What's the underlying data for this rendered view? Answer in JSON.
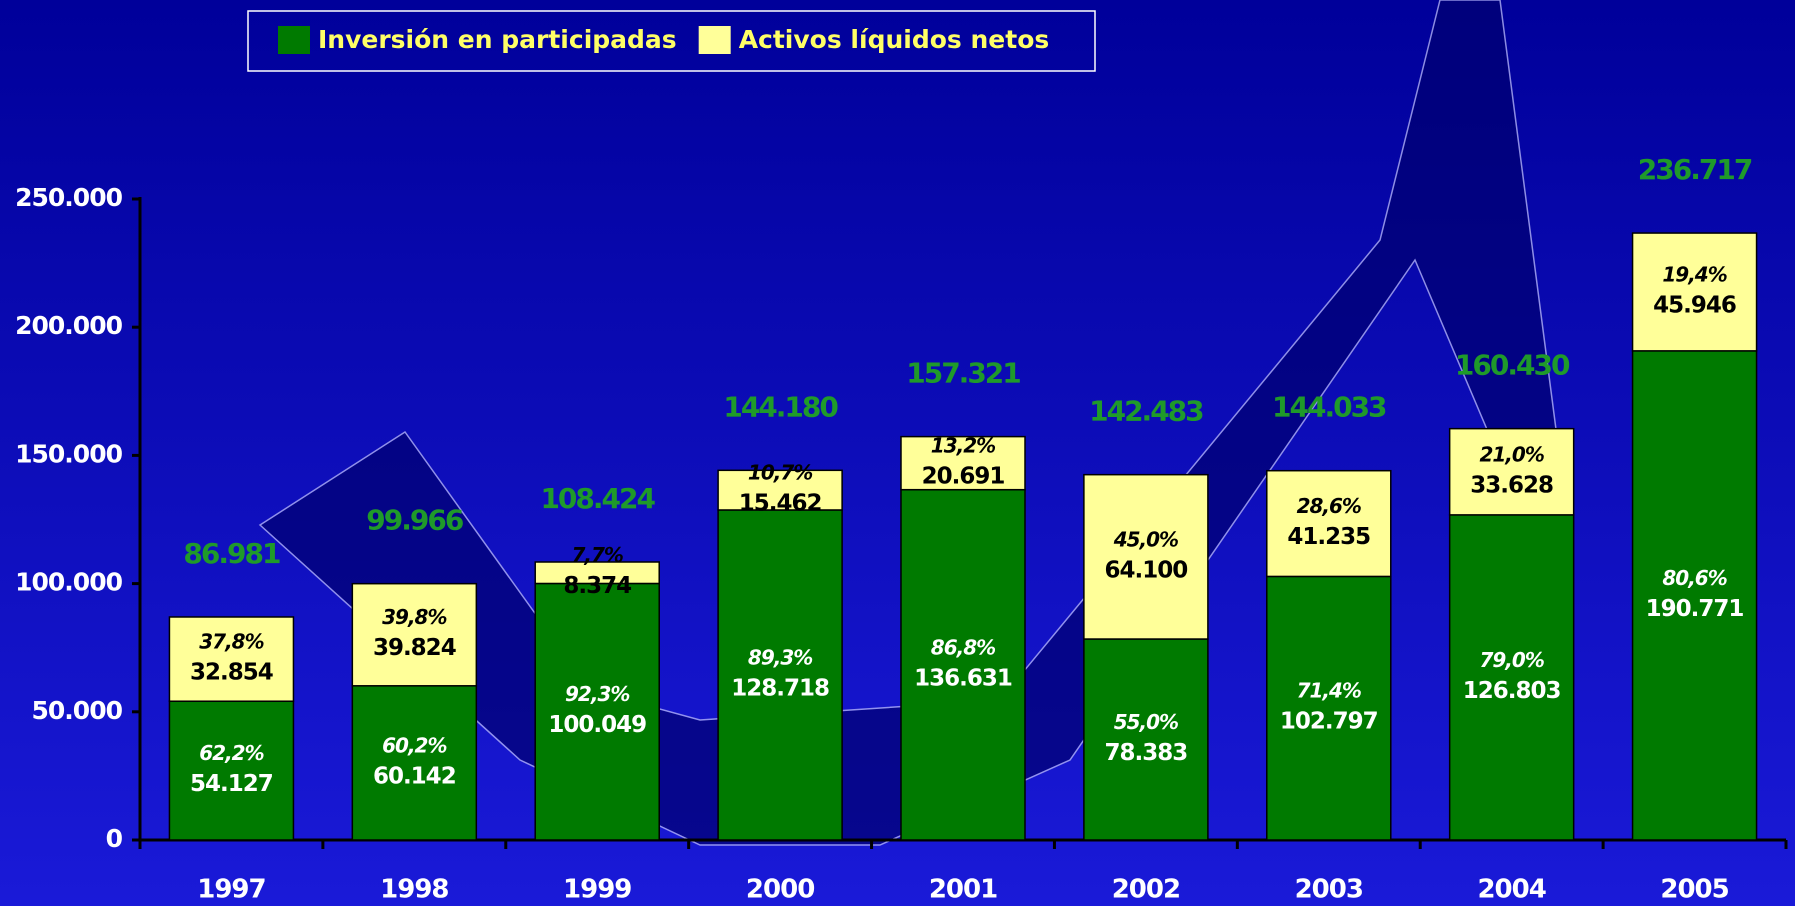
{
  "chart_data": {
    "type": "stacked_bar",
    "categories": [
      "1997",
      "1998",
      "1999",
      "2000",
      "2001",
      "2002",
      "2003",
      "2004",
      "2005"
    ],
    "series": [
      {
        "name": "Inversión en participadas",
        "color": "#007a00",
        "values": [
          54127,
          60142,
          100049,
          128718,
          136631,
          78383,
          102797,
          126803,
          190771
        ],
        "value_labels": [
          "54.127",
          "60.142",
          "100.049",
          "128.718",
          "136.631",
          "78.383",
          "102.797",
          "126.803",
          "190.771"
        ],
        "percent_labels": [
          "62,2%",
          "60,2%",
          "92,3%",
          "89,3%",
          "86,8%",
          "55,0%",
          "71,4%",
          "79,0%",
          "80,6%"
        ]
      },
      {
        "name": "Activos líquidos netos",
        "color": "#ffff99",
        "values": [
          32854,
          39824,
          8374,
          15462,
          20691,
          64100,
          41235,
          33628,
          45946
        ],
        "value_labels": [
          "32.854",
          "39.824",
          "8.374",
          "15.462",
          "20.691",
          "64.100",
          "41.235",
          "33.628",
          "45.946"
        ],
        "percent_labels": [
          "37,8%",
          "39,8%",
          "7,7%",
          "10,7%",
          "13,2%",
          "45,0%",
          "28,6%",
          "21,0%",
          "19,4%"
        ]
      }
    ],
    "totals": {
      "color": "#1f9a2a",
      "values": [
        86981,
        99966,
        108424,
        144180,
        157321,
        142483,
        144033,
        160430,
        236717
      ],
      "value_labels": [
        "86.981",
        "99.966",
        "108.424",
        "144.180",
        "157.321",
        "142.483",
        "144.033",
        "160.430",
        "236.717"
      ]
    },
    "ylim": [
      0,
      250000
    ],
    "yticks": [
      0,
      {
        "value": 50000,
        "label": "50.000"
      },
      {
        "value": 100000,
        "label": "100.000"
      },
      {
        "value": 150000,
        "label": "150.000"
      },
      {
        "value": 200000,
        "label": "200.000"
      },
      {
        "value": 250000,
        "label": "250.000"
      }
    ]
  }
}
